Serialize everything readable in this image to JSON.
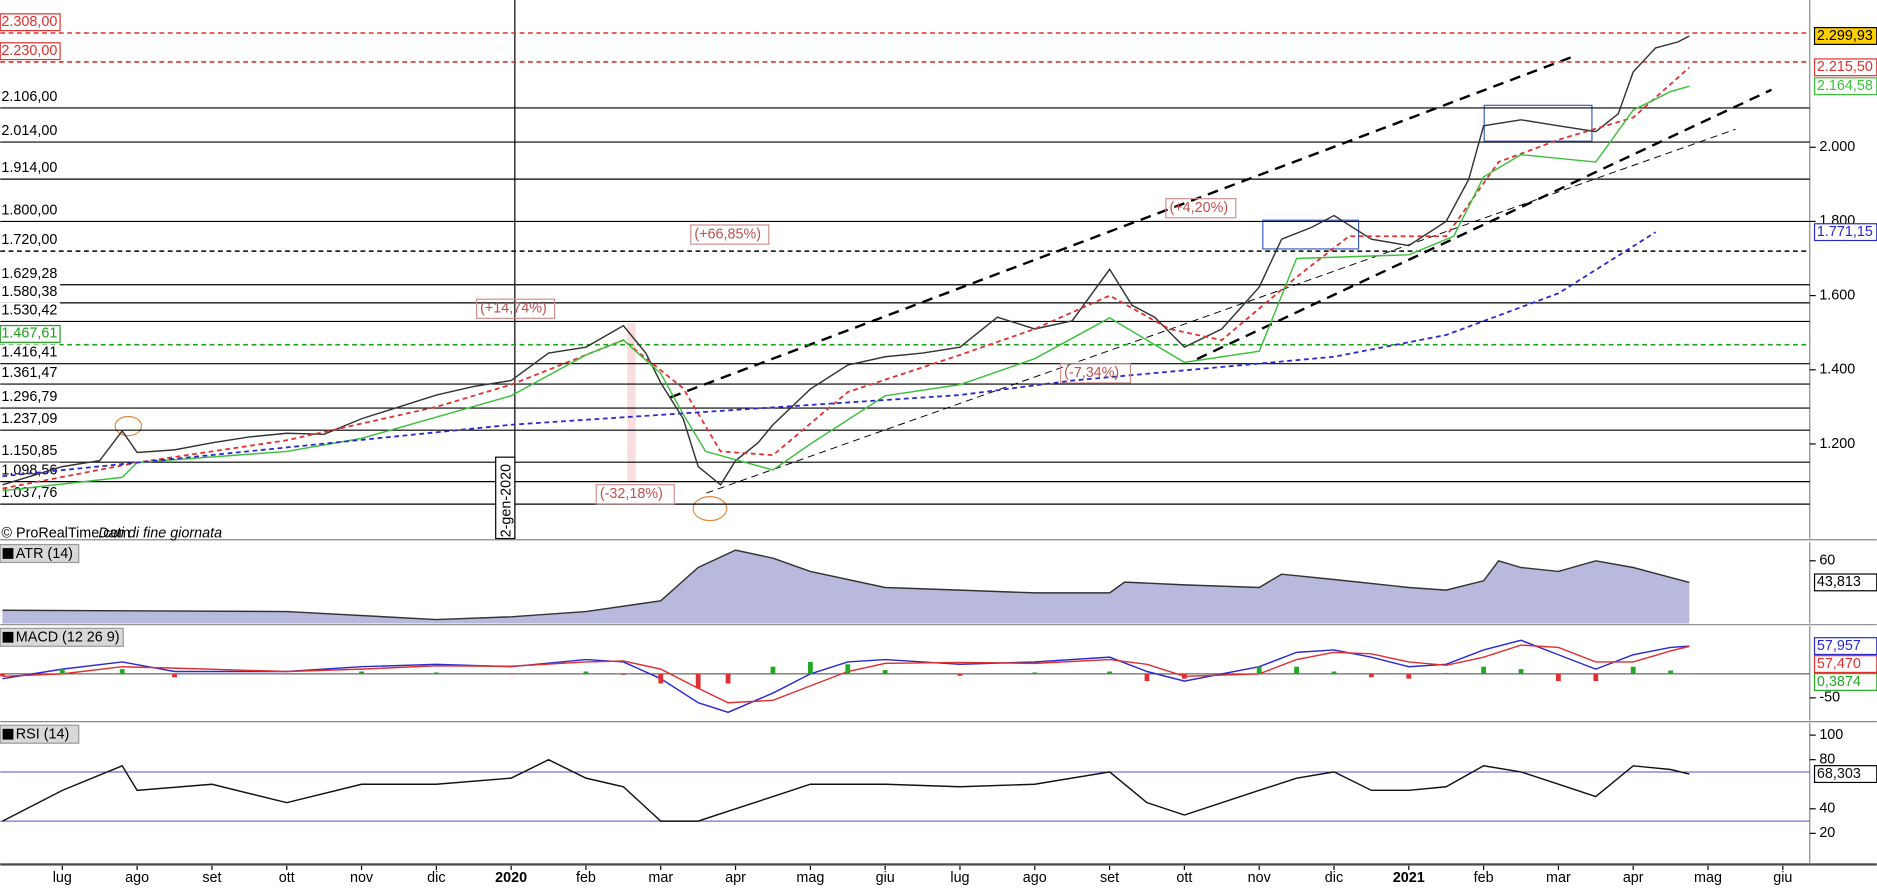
{
  "x_axis": {
    "xlim": [
      -0.83,
      23.36
    ],
    "xticks": [
      {
        "value": 0,
        "label": "lug"
      },
      {
        "value": 1,
        "label": "ago"
      },
      {
        "value": 2,
        "label": "set"
      },
      {
        "value": 3,
        "label": "ott"
      },
      {
        "value": 4,
        "label": "nov"
      },
      {
        "value": 5,
        "label": "dic"
      },
      {
        "value": 6,
        "label": "2020"
      },
      {
        "value": 7,
        "label": "feb"
      },
      {
        "value": 8,
        "label": "mar"
      },
      {
        "value": 9,
        "label": "apr"
      },
      {
        "value": 10,
        "label": "mag"
      },
      {
        "value": 11,
        "label": "giu"
      },
      {
        "value": 12,
        "label": "lug"
      },
      {
        "value": 13,
        "label": "ago"
      },
      {
        "value": 14,
        "label": "set"
      },
      {
        "value": 15,
        "label": "ott"
      },
      {
        "value": 16,
        "label": "nov"
      },
      {
        "value": 17,
        "label": "dic"
      },
      {
        "value": 18,
        "label": "2021"
      },
      {
        "value": 19,
        "label": "feb"
      },
      {
        "value": 20,
        "label": "mar"
      },
      {
        "value": 21,
        "label": "apr"
      },
      {
        "value": 22,
        "label": "mag"
      },
      {
        "value": 23,
        "label": "giu"
      }
    ]
  },
  "chart_data": [
    {
      "type": "line",
      "ylim": [
        945,
        2397
      ],
      "yticks": [
        {
          "value": 1200,
          "label": "1.200"
        },
        {
          "value": 1400,
          "label": "1.400"
        },
        {
          "value": 1600,
          "label": "1.600"
        },
        {
          "value": 1800,
          "label": "1.800"
        },
        {
          "value": 2000,
          "label": "2.000"
        }
      ],
      "levels": [
        {
          "value": 2308,
          "label": "2.308,00",
          "color": "#e03030",
          "dashed": true
        },
        {
          "value": 2230,
          "label": "2.230,00",
          "color": "#e03030",
          "dashed": true
        },
        {
          "value": 2106,
          "label": "2.106,00",
          "color": "#000000"
        },
        {
          "value": 2014,
          "label": "2.014,00",
          "color": "#000000"
        },
        {
          "value": 1914,
          "label": "1.914,00",
          "color": "#000000"
        },
        {
          "value": 1800,
          "label": "1.800,00",
          "color": "#000000"
        },
        {
          "value": 1720,
          "label": "1.720,00",
          "color": "#000000",
          "dashed": true
        },
        {
          "value": 1629.28,
          "label": "1.629,28",
          "color": "#000000"
        },
        {
          "value": 1580.38,
          "label": "1.580,38",
          "color": "#000000"
        },
        {
          "value": 1530.42,
          "label": "1.530,42",
          "color": "#000000"
        },
        {
          "value": 1467.61,
          "label": "1.467,61",
          "color": "#1f9e1f",
          "dashed": true
        },
        {
          "value": 1416.41,
          "label": "1.416,41",
          "color": "#000000"
        },
        {
          "value": 1361.47,
          "label": "1.361,47",
          "color": "#000000"
        },
        {
          "value": 1296.79,
          "label": "1.296,79",
          "color": "#000000"
        },
        {
          "value": 1237.09,
          "label": "1.237,09",
          "color": "#000000"
        },
        {
          "value": 1150.85,
          "label": "1.150,85",
          "color": "#000000"
        },
        {
          "value": 1098.56,
          "label": "1.098,56",
          "color": "#000000"
        },
        {
          "value": 1037.76,
          "label": "1.037,76",
          "color": "#000000"
        }
      ],
      "series": [
        {
          "color": "#333333",
          "label_bg": "#ffd000",
          "x": [
            -0.8,
            0,
            0.5,
            0.8,
            1,
            1.5,
            2,
            2.5,
            3,
            3.5,
            4,
            4.5,
            5,
            5.5,
            6,
            6.5,
            7,
            7.5,
            7.8,
            8,
            8.3,
            8.5,
            8.8,
            9,
            9.3,
            9.5,
            10,
            10.5,
            11,
            11.5,
            12,
            12.5,
            13,
            13.5,
            14,
            14.3,
            14.6,
            15,
            15.5,
            16,
            16.3,
            16.7,
            17,
            17.5,
            18,
            18.5,
            18.8,
            19,
            19.5,
            20,
            20.5,
            20.8,
            21,
            21.3,
            21.6,
            21.75
          ],
          "values": [
            1090,
            1139,
            1155,
            1235,
            1177,
            1184,
            1203,
            1219,
            1229,
            1226,
            1268,
            1300,
            1332,
            1355,
            1371,
            1445,
            1461,
            1519,
            1445,
            1365,
            1268,
            1139,
            1090,
            1155,
            1203,
            1252,
            1348,
            1413,
            1435,
            1445,
            1461,
            1542,
            1510,
            1532,
            1671,
            1574,
            1542,
            1461,
            1510,
            1623,
            1752,
            1784,
            1816,
            1752,
            1735,
            1800,
            1913,
            2058,
            2074,
            2058,
            2042,
            2090,
            2203,
            2268,
            2284,
            2299.93
          ],
          "last_label": "2.299,93"
        },
        {
          "color": "#e03030",
          "dashed": true,
          "x": [
            -0.8,
            1,
            3,
            5,
            6,
            7,
            7.5,
            8.3,
            8.8,
            9.5,
            10.5,
            12,
            13,
            14,
            14.8,
            15.5,
            16.5,
            17.2,
            18.5,
            19.2,
            20,
            21,
            21.75
          ],
          "values": [
            1080,
            1150,
            1210,
            1300,
            1360,
            1440,
            1480,
            1350,
            1180,
            1170,
            1340,
            1440,
            1510,
            1600,
            1510,
            1480,
            1650,
            1760,
            1760,
            1960,
            2020,
            2080,
            2215.5
          ],
          "last_label": "2.215,50"
        },
        {
          "color": "#3cc03c",
          "x": [
            -0.8,
            0.8,
            1,
            3,
            4,
            6,
            7,
            7.5,
            8,
            8.3,
            8.6,
            9.5,
            10,
            11,
            12,
            13,
            14,
            14.5,
            15,
            16,
            16.5,
            18,
            18.6,
            19,
            19.5,
            20.5,
            21,
            21.5,
            21.75
          ],
          "values": [
            1074,
            1110,
            1150,
            1180,
            1215,
            1330,
            1440,
            1480,
            1390,
            1280,
            1180,
            1130,
            1200,
            1330,
            1360,
            1430,
            1540,
            1480,
            1420,
            1450,
            1700,
            1710,
            1760,
            1920,
            1980,
            1960,
            2100,
            2150,
            2164.58
          ],
          "last_label": "2.164,58"
        },
        {
          "color": "#2a2ad0",
          "dashed": true,
          "x": [
            -0.8,
            6,
            12,
            13.5,
            17,
            18.5,
            20,
            21.3
          ],
          "values": [
            1113,
            1252,
            1332,
            1371,
            1435,
            1494,
            1606,
            1771.15
          ],
          "last_label": "1.771,15"
        }
      ],
      "annotations": [
        "(+14,74%)",
        "(+66,85%)",
        "(+4,20%)",
        "(-32,18%)",
        "(-7,34%)",
        "2-gen-2020"
      ],
      "source": "© ProRealTime.com",
      "source_note": "Dati di fine giornata"
    },
    {
      "type": "area",
      "title": "ATR (14)",
      "ylim": [
        13,
        74
      ],
      "yticks": [
        60
      ],
      "color": "#7e80c0",
      "series": [
        {
          "color": "#333333",
          "x": [
            -0.8,
            3,
            5,
            6,
            7,
            8,
            8.5,
            9,
            9.5,
            10,
            11,
            12,
            13,
            14,
            14.2,
            15,
            16,
            16.3,
            17,
            18,
            18.5,
            19,
            19.2,
            19.5,
            20,
            20.5,
            21,
            21.75
          ],
          "values": [
            23,
            22,
            16,
            18,
            22,
            30,
            55,
            68,
            62,
            52,
            40,
            38,
            36,
            36,
            44,
            42,
            40,
            50,
            46,
            40,
            38,
            45,
            60,
            55,
            52,
            60,
            55,
            43.813
          ],
          "last_label": "43,813"
        }
      ]
    },
    {
      "type": "macd",
      "title": "MACD (12 26 9)",
      "ylim": [
        -97,
        100
      ],
      "yticks": [
        -50
      ],
      "series": [
        {
          "color": "#2a2ad0",
          "x": [
            -0.8,
            0,
            0.8,
            1.5,
            3,
            4,
            5,
            6,
            7,
            7.5,
            8,
            8.5,
            8.9,
            9.5,
            10,
            10.5,
            11,
            12,
            13,
            14,
            14.5,
            15,
            16,
            16.5,
            17,
            17.5,
            18,
            18.5,
            19,
            19.5,
            20,
            20.5,
            21,
            21.5,
            21.75
          ],
          "values": [
            -10,
            10,
            25,
            5,
            5,
            15,
            20,
            15,
            30,
            25,
            -10,
            -60,
            -80,
            -40,
            0,
            25,
            30,
            20,
            25,
            35,
            5,
            -15,
            15,
            45,
            50,
            35,
            15,
            20,
            50,
            70,
            40,
            10,
            40,
            55,
            57.957
          ],
          "last_label": "57,957"
        },
        {
          "color": "#e03030",
          "x": [
            -0.8,
            0,
            0.8,
            1.5,
            3,
            4,
            5,
            6,
            7,
            7.5,
            8,
            8.5,
            8.9,
            9.5,
            10,
            10.5,
            11,
            12,
            13,
            14,
            14.5,
            15,
            16,
            16.5,
            17,
            17.5,
            18,
            18.5,
            19,
            19.5,
            20,
            20.5,
            21,
            21.5,
            21.75
          ],
          "values": [
            -5,
            0,
            15,
            12,
            5,
            10,
            17,
            16,
            25,
            27,
            10,
            -30,
            -60,
            -55,
            -25,
            5,
            22,
            24,
            22,
            30,
            20,
            -5,
            0,
            30,
            45,
            42,
            25,
            18,
            35,
            60,
            55,
            25,
            25,
            48,
            57.47
          ],
          "last_label": "57,470"
        },
        {
          "color": "#22aa22",
          "negative_color": "#e03030",
          "histogram": true,
          "x": [
            -0.8,
            0,
            0.8,
            1.5,
            3,
            4,
            5,
            6,
            7,
            7.5,
            8,
            8.5,
            8.9,
            9.5,
            10,
            10.5,
            11,
            12,
            13,
            14,
            14.5,
            15,
            16,
            16.5,
            17,
            17.5,
            18,
            18.5,
            19,
            19.5,
            20,
            20.5,
            21,
            21.5,
            21.75
          ],
          "values": [
            -5,
            10,
            10,
            -7,
            0,
            5,
            3,
            -1,
            5,
            -2,
            -20,
            -30,
            -20,
            15,
            25,
            20,
            8,
            -4,
            3,
            5,
            -15,
            -10,
            15,
            15,
            5,
            -7,
            -10,
            2,
            15,
            10,
            -15,
            -15,
            15,
            7,
            0.3874
          ],
          "last_label": "0,3874"
        }
      ]
    },
    {
      "type": "line",
      "title": "RSI (14)",
      "ylim": [
        -5,
        110
      ],
      "yticks": [
        20,
        40,
        80,
        100
      ],
      "levels": [
        70,
        30
      ],
      "series": [
        {
          "color": "#111111",
          "x": [
            -0.8,
            0,
            0.8,
            1,
            2,
            3,
            4,
            5,
            6,
            6.5,
            7,
            7.5,
            8,
            8.5,
            9,
            9.5,
            10,
            11,
            12,
            13,
            14,
            14.5,
            15,
            16,
            16.5,
            17,
            17.5,
            18,
            18.5,
            19,
            19.5,
            20,
            20.5,
            21,
            21.5,
            21.75
          ],
          "values": [
            30,
            55,
            75,
            55,
            60,
            45,
            60,
            60,
            65,
            80,
            65,
            58,
            30,
            30,
            40,
            50,
            60,
            60,
            58,
            60,
            70,
            45,
            35,
            55,
            65,
            70,
            55,
            55,
            58,
            75,
            70,
            60,
            50,
            75,
            72,
            68.303
          ],
          "last_label": "68,303"
        }
      ]
    }
  ]
}
